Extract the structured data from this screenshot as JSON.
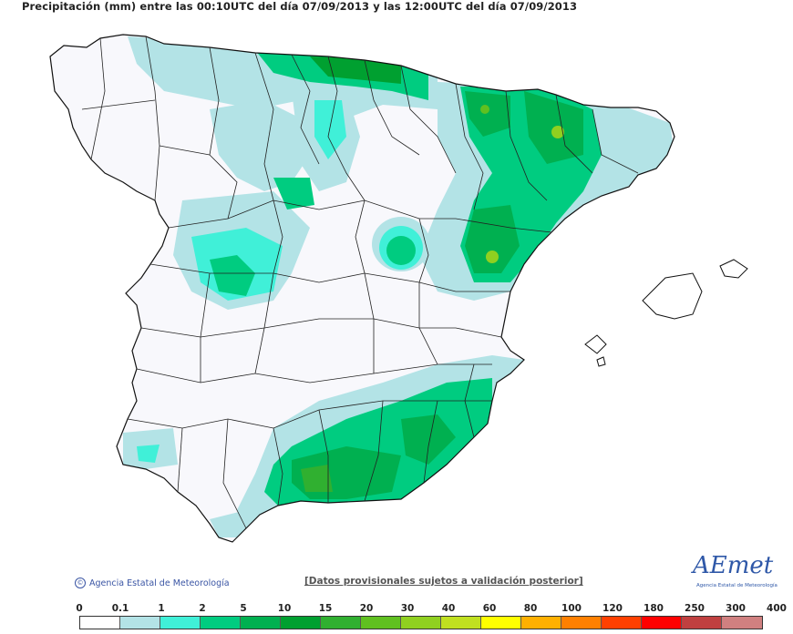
{
  "header": {
    "title": "Precipitación (mm) entre las 00:10UTC del día 07/09/2013 y las 12:00UTC del día 07/09/2013"
  },
  "footer": {
    "copyright": "Agencia Estatal de Meteorología",
    "disclaimer": "[Datos provisionales sujetos a validación posterior]",
    "logo_text": "AEmet",
    "logo_sub": "Agencia Estatal de Meteorología"
  },
  "legend": {
    "labels": [
      "0",
      "0.1",
      "1",
      "2",
      "5",
      "10",
      "15",
      "20",
      "30",
      "40",
      "60",
      "80",
      "100",
      "120",
      "180",
      "250",
      "300",
      "400"
    ],
    "colors": [
      "#ffffff",
      "#b3e3e6",
      "#40f0d8",
      "#00cc80",
      "#00b050",
      "#00a030",
      "#30b030",
      "#60c020",
      "#90d020",
      "#c0e020",
      "#ffff00",
      "#ffb000",
      "#ff8000",
      "#ff4000",
      "#ff0000",
      "#c04040",
      "#d08080",
      "#f0c8c8"
    ]
  }
}
